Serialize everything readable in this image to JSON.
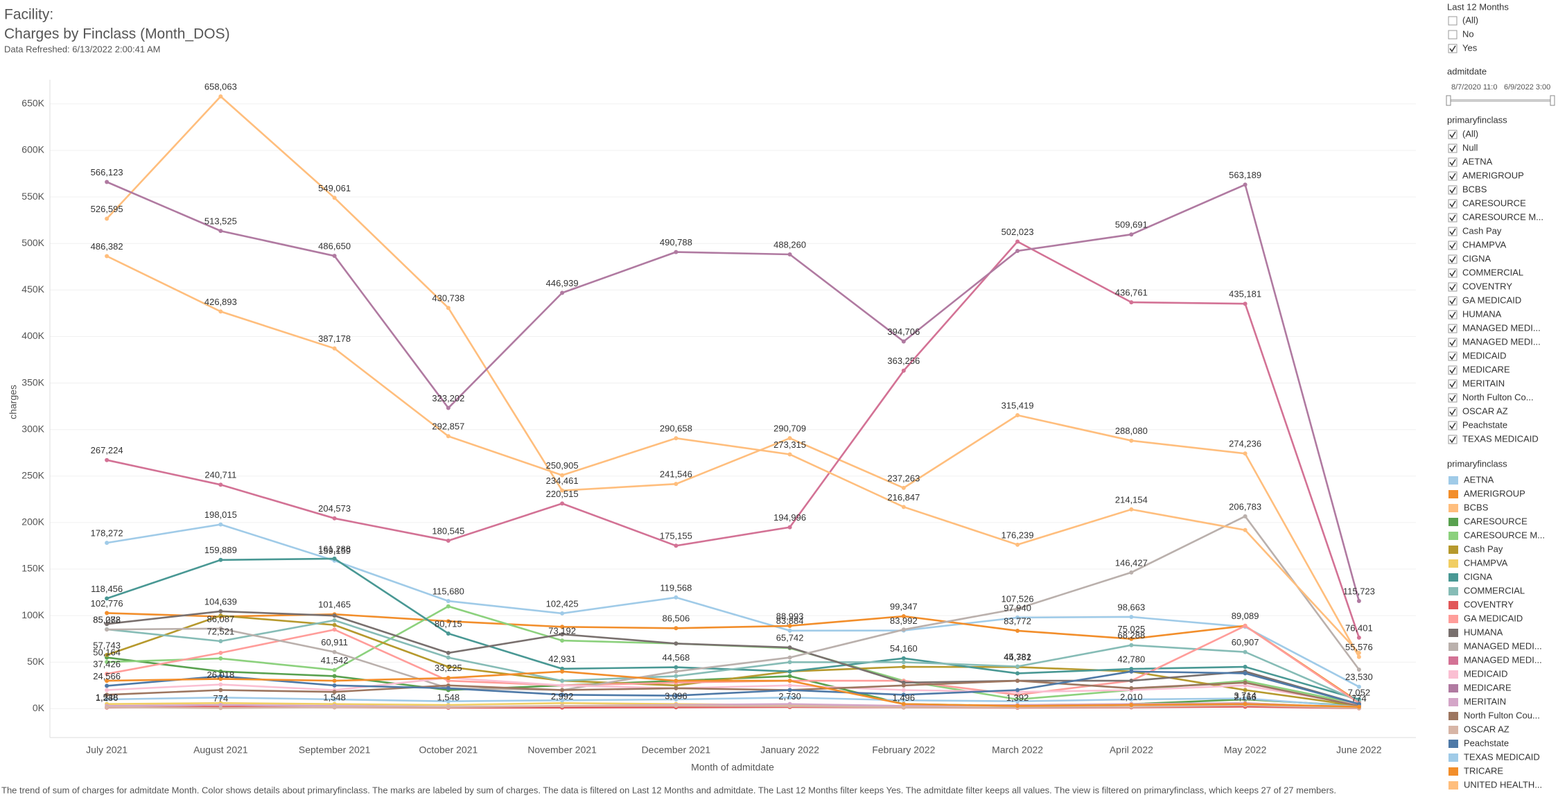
{
  "header": {
    "facility": "Facility:",
    "title": "Charges by Finclass (Month_DOS)",
    "refreshed": "Data Refreshed: 6/13/2022 2:00:41 AM"
  },
  "filters": {
    "last12": {
      "title": "Last 12 Months",
      "items": [
        {
          "label": "(All)",
          "checked": false
        },
        {
          "label": "No",
          "checked": false
        },
        {
          "label": "Yes",
          "checked": true
        }
      ]
    },
    "admitdate": {
      "title": "admitdate",
      "start": "8/7/2020 11:0",
      "end": "6/9/2022 3:00"
    },
    "primaryfinclass": {
      "title": "primaryfinclass",
      "checked": true,
      "items": [
        "(All)",
        "Null",
        "AETNA",
        "AMERIGROUP",
        "BCBS",
        "CARESOURCE",
        "CARESOURCE M...",
        "Cash Pay",
        "CHAMPVA",
        "CIGNA",
        "COMMERCIAL",
        "COVENTRY",
        "GA MEDICAID",
        "HUMANA",
        "MANAGED MEDI...",
        "MANAGED MEDI...",
        "MEDICAID",
        "MEDICARE",
        "MERITAIN",
        "North Fulton Co...",
        "OSCAR AZ",
        "Peachstate",
        "TEXAS MEDICAID"
      ]
    }
  },
  "legend_title": "primaryfinclass",
  "footer": "The trend of sum of charges for admitdate Month.  Color shows details about primaryfinclass.  The marks are labeled by sum of charges. The data is filtered on Last 12 Months and admitdate. The Last 12 Months filter keeps Yes. The admitdate filter keeps all values. The view is filtered on primaryfinclass, which keeps 27 of 27 members.",
  "chart_data": {
    "type": "line",
    "x_label": "Month of admitdate",
    "y_label": "charges",
    "grid": true,
    "categories": [
      "July 2021",
      "August 2021",
      "September 2021",
      "October 2021",
      "November 2021",
      "December 2021",
      "January 2022",
      "February 2022",
      "March 2022",
      "April 2022",
      "May 2022",
      "June 2022"
    ],
    "ylim": [
      -31000,
      676000
    ],
    "yticks": [
      {
        "value": 0,
        "label": "0K"
      },
      {
        "value": 50000,
        "label": "50K"
      },
      {
        "value": 100000,
        "label": "100K"
      },
      {
        "value": 150000,
        "label": "150K"
      },
      {
        "value": 200000,
        "label": "200K"
      },
      {
        "value": 250000,
        "label": "250K"
      },
      {
        "value": 300000,
        "label": "300K"
      },
      {
        "value": 350000,
        "label": "350K"
      },
      {
        "value": 400000,
        "label": "400K"
      },
      {
        "value": 450000,
        "label": "450K"
      },
      {
        "value": 500000,
        "label": "500K"
      },
      {
        "value": 550000,
        "label": "550K"
      },
      {
        "value": 600000,
        "label": "600K"
      },
      {
        "value": 650000,
        "label": "650K"
      }
    ],
    "series": [
      {
        "name": "AETNA",
        "color": "#a0cbe8",
        "values": [
          178272,
          198015,
          159159,
          115680,
          102425,
          119568,
          83884,
          83992,
          97940,
          98663,
          88000,
          23530
        ],
        "value_labels": [
          "178,272",
          "198,015",
          "159,159",
          "115,680",
          "102,425",
          "119,568",
          "83,884",
          "83,992",
          "97,940",
          "98,663",
          null,
          "23,530"
        ]
      },
      {
        "name": "AMERIGROUP",
        "color": "#f28e2b",
        "values": [
          102776,
          99000,
          101465,
          94000,
          88000,
          86506,
          88993,
          99347,
          83772,
          75025,
          89089,
          7052
        ],
        "value_labels": [
          "102,776",
          null,
          "101,465",
          null,
          null,
          "86,506",
          "88,993",
          "99,347",
          "83,772",
          "75,025",
          "89,089",
          "7,052"
        ]
      },
      {
        "name": "BCBS",
        "color": "#ffbe7d",
        "values": [
          526595,
          658063,
          549061,
          430738,
          234461,
          241546,
          290709,
          237263,
          315419,
          288080,
          274236,
          55576
        ],
        "value_labels": [
          "526,595",
          "658,063",
          "549,061",
          "430,738",
          "234,461",
          "241,546",
          "290,709",
          "237,263",
          "315,419",
          "288,080",
          "274,236",
          "55,576"
        ]
      },
      {
        "name": "CARESOURCE",
        "color": "#59a14f",
        "values": [
          55000,
          40000,
          35000,
          20000,
          25000,
          30000,
          35000,
          5000,
          3000,
          5000,
          10000,
          3000
        ]
      },
      {
        "name": "CARESOURCE M...",
        "color": "#8cd17d",
        "values": [
          50164,
          54000,
          41542,
          110000,
          73192,
          70000,
          65000,
          30000,
          10000,
          20000,
          30000,
          5000
        ],
        "value_labels": [
          "50,164",
          null,
          "41,542",
          null,
          "73,192",
          null,
          null,
          null,
          null,
          null,
          null,
          null
        ]
      },
      {
        "name": "Cash Pay",
        "color": "#b6992d",
        "values": [
          57743,
          100000,
          90000,
          45000,
          30000,
          25000,
          40000,
          45000,
          44782,
          40000,
          20000,
          3000
        ],
        "value_labels": [
          "57,743",
          null,
          null,
          null,
          null,
          null,
          null,
          null,
          "44,782",
          null,
          null,
          null
        ]
      },
      {
        "name": "CHAMPVA",
        "color": "#f1ce63",
        "values": [
          5000,
          6000,
          5000,
          4000,
          6000,
          5000,
          4000,
          3000,
          4000,
          5000,
          6000,
          1000
        ]
      },
      {
        "name": "CIGNA",
        "color": "#499894",
        "values": [
          118456,
          159889,
          161288,
          80715,
          42931,
          44568,
          40000,
          54160,
          38000,
          42780,
          45000,
          10000
        ],
        "value_labels": [
          "118,456",
          "159,889",
          "161,288",
          "80,715",
          "42,931",
          "44,568",
          null,
          "54,160",
          null,
          "42,780",
          null,
          null
        ]
      },
      {
        "name": "COMMERCIAL",
        "color": "#86bcb6",
        "values": [
          85282,
          72521,
          95000,
          55000,
          30000,
          35000,
          50000,
          50000,
          45381,
          68288,
          60907,
          8000
        ],
        "value_labels": [
          "85,282",
          "72,521",
          null,
          null,
          null,
          null,
          null,
          null,
          "45,381",
          "68,288",
          "60,907",
          null
        ]
      },
      {
        "name": "COVENTRY",
        "color": "#e15759",
        "values": [
          1236,
          2000,
          1500,
          1000,
          1200,
          1500,
          1800,
          1300,
          1000,
          1500,
          2166,
          500
        ],
        "value_labels": [
          "1,236",
          null,
          null,
          null,
          null,
          null,
          null,
          null,
          null,
          null,
          "2,166",
          null
        ]
      },
      {
        "name": "GA MEDICAID",
        "color": "#ff9d9a",
        "values": [
          37426,
          60000,
          85000,
          30000,
          25000,
          28000,
          30000,
          30000,
          15000,
          30000,
          89000,
          6000
        ],
        "value_labels": [
          "37,426",
          null,
          null,
          null,
          null,
          null,
          null,
          null,
          null,
          null,
          null,
          null
        ]
      },
      {
        "name": "HUMANA",
        "color": "#79706e",
        "values": [
          91000,
          104639,
          100000,
          60000,
          80000,
          70000,
          65742,
          28000,
          30000,
          30000,
          40000,
          5000
        ],
        "value_labels": [
          null,
          "104,639",
          null,
          null,
          null,
          null,
          "65,742",
          null,
          null,
          null,
          null,
          null
        ]
      },
      {
        "name": "MANAGED MEDI...",
        "color": "#bab0ac",
        "values": [
          85078,
          86087,
          60911,
          22000,
          20000,
          40000,
          55000,
          85000,
          107526,
          146427,
          206783,
          42000
        ],
        "value_labels": [
          "85,078",
          "86,087",
          "60,911",
          null,
          null,
          null,
          null,
          null,
          "107,526",
          "146,427",
          "206,783",
          null
        ]
      },
      {
        "name": "MANAGED MEDI...",
        "color": "#d37295",
        "values": [
          267224,
          240711,
          204573,
          180545,
          220515,
          175155,
          194996,
          363256,
          502023,
          436761,
          435181,
          76401
        ],
        "value_labels": [
          "267,224",
          "240,711",
          "204,573",
          "180,545",
          "220,515",
          "175,155",
          "194,996",
          "363,256",
          "502,023",
          "436,761",
          "435,181",
          "76,401"
        ]
      },
      {
        "name": "MEDICAID",
        "color": "#fabfd2",
        "values": [
          20000,
          26018,
          20000,
          33225,
          25000,
          22000,
          25000,
          20000,
          18000,
          20000,
          25000,
          4000
        ],
        "value_labels": [
          null,
          "26,018",
          null,
          "33,225",
          null,
          null,
          null,
          null,
          null,
          null,
          null,
          null
        ]
      },
      {
        "name": "MEDICARE",
        "color": "#b07aa1",
        "values": [
          566123,
          513525,
          486650,
          323202,
          446939,
          490788,
          488260,
          394706,
          492000,
          509691,
          563189,
          115723
        ],
        "value_labels": [
          "566,123",
          "513,525",
          "486,650",
          "323,202",
          "446,939",
          "490,788",
          "488,260",
          "394,706",
          null,
          "509,691",
          "563,189",
          "115,723"
        ]
      },
      {
        "name": "MERITAIN",
        "color": "#d4a6c8",
        "values": [
          3000,
          4000,
          3000,
          2000,
          3000,
          4000,
          5000,
          3000,
          4000,
          5000,
          6000,
          1000
        ]
      },
      {
        "name": "North Fulton Cou...",
        "color": "#9d7660",
        "values": [
          15000,
          20000,
          18000,
          25000,
          20000,
          22000,
          20000,
          25000,
          30000,
          22000,
          28000,
          3000
        ]
      },
      {
        "name": "OSCAR AZ",
        "color": "#d7b5a6",
        "values": [
          1548,
          774,
          1548,
          1548,
          2992,
          3096,
          2730,
          1496,
          1392,
          2010,
          3714,
          774
        ],
        "value_labels": [
          "1,548",
          "774",
          "1,548",
          "1,548",
          "2,992",
          "3,096",
          "2,730",
          "1,496",
          "1,392",
          "2,010",
          "3,714",
          "774"
        ]
      },
      {
        "name": "Peachstate",
        "color": "#4e79a7",
        "values": [
          24566,
          35000,
          25000,
          22000,
          15000,
          14000,
          20000,
          15000,
          20000,
          40000,
          38000,
          5000
        ],
        "value_labels": [
          "24,566",
          null,
          null,
          null,
          null,
          null,
          null,
          null,
          null,
          null,
          null,
          null
        ]
      },
      {
        "name": "TEXAS MEDICAID",
        "color": "#a0cbe8",
        "values": [
          10000,
          12000,
          10000,
          8000,
          9000,
          10000,
          12000,
          9000,
          8000,
          10000,
          11000,
          2000
        ]
      },
      {
        "name": "TRICARE",
        "color": "#f28e2b",
        "values": [
          30000,
          32000,
          30000,
          33000,
          40000,
          30000,
          30000,
          5000,
          3000,
          4000,
          5000,
          2000
        ]
      },
      {
        "name": "UNITED HEALTH...",
        "color": "#ffbe7d",
        "values": [
          486382,
          426893,
          387178,
          292857,
          250905,
          290658,
          273315,
          216847,
          176239,
          214154,
          192000,
          60000
        ],
        "value_labels": [
          "486,382",
          "426,893",
          "387,178",
          "292,857",
          "250,905",
          "290,658",
          "273,315",
          "216,847",
          "176,239",
          "214,154",
          null,
          null
        ]
      }
    ]
  }
}
